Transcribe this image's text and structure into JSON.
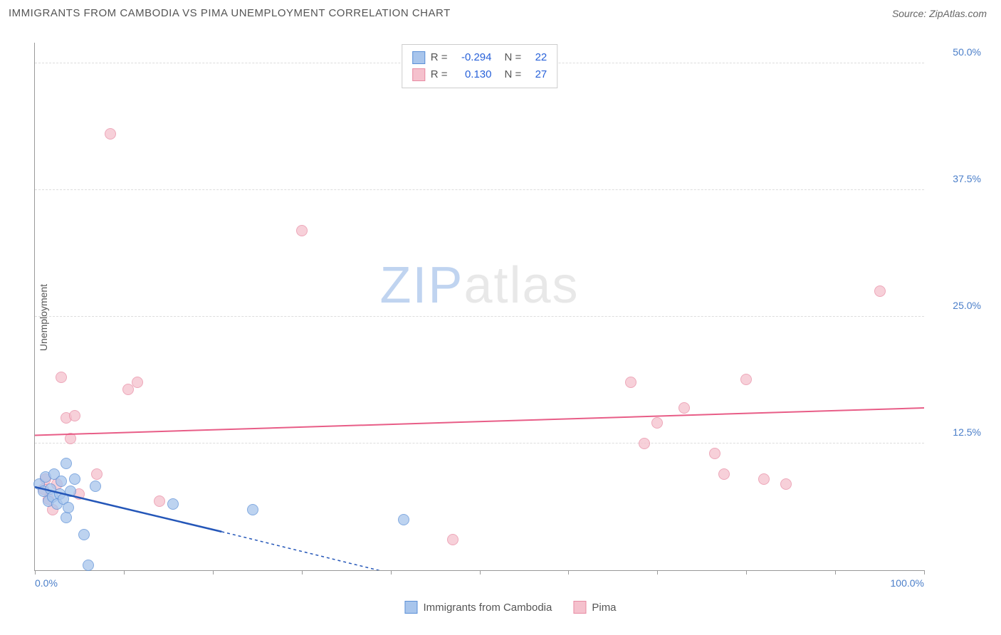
{
  "header": {
    "title": "IMMIGRANTS FROM CAMBODIA VS PIMA UNEMPLOYMENT CORRELATION CHART",
    "source_prefix": "Source: ",
    "source_name": "ZipAtlas.com"
  },
  "chart": {
    "type": "scatter",
    "y_axis_label": "Unemployment",
    "xlim": [
      0,
      100
    ],
    "ylim": [
      0,
      52
    ],
    "x_ticks": [
      0,
      10,
      20,
      30,
      40,
      50,
      60,
      70,
      80,
      90,
      100
    ],
    "x_tick_labels": {
      "0": "0.0%",
      "100": "100.0%"
    },
    "y_gridlines": [
      12.5,
      25.0,
      37.5,
      50.0
    ],
    "y_tick_labels": [
      "12.5%",
      "25.0%",
      "37.5%",
      "50.0%"
    ],
    "background_color": "#ffffff",
    "grid_color": "#dddddd",
    "axis_color": "#999999",
    "tick_label_color": "#4a7ec9",
    "watermark": {
      "zip": "ZIP",
      "atlas": "atlas",
      "zip_color": "#c0d4f0",
      "atlas_color": "#e8e8e8",
      "fontsize": 72
    }
  },
  "series": {
    "blue": {
      "label": "Immigrants from Cambodia",
      "R": "-0.294",
      "N": "22",
      "fill_color": "#a8c5ec",
      "border_color": "#5b8fd6",
      "line_color": "#2456b8",
      "points": [
        {
          "x": 0.5,
          "y": 8.5
        },
        {
          "x": 1.0,
          "y": 7.8
        },
        {
          "x": 1.2,
          "y": 9.2
        },
        {
          "x": 1.5,
          "y": 6.8
        },
        {
          "x": 1.8,
          "y": 8.0
        },
        {
          "x": 2.0,
          "y": 7.2
        },
        {
          "x": 2.2,
          "y": 9.5
        },
        {
          "x": 2.5,
          "y": 6.5
        },
        {
          "x": 2.8,
          "y": 7.5
        },
        {
          "x": 3.0,
          "y": 8.8
        },
        {
          "x": 3.2,
          "y": 7.0
        },
        {
          "x": 3.5,
          "y": 5.2
        },
        {
          "x": 3.5,
          "y": 10.5
        },
        {
          "x": 3.8,
          "y": 6.2
        },
        {
          "x": 4.0,
          "y": 7.8
        },
        {
          "x": 4.5,
          "y": 9.0
        },
        {
          "x": 5.5,
          "y": 3.5
        },
        {
          "x": 6.0,
          "y": 0.5
        },
        {
          "x": 6.8,
          "y": 8.3
        },
        {
          "x": 15.5,
          "y": 6.5
        },
        {
          "x": 24.5,
          "y": 6.0
        },
        {
          "x": 41.5,
          "y": 5.0
        }
      ],
      "trend": {
        "x1": 0,
        "y1": 8.2,
        "x2_solid": 21,
        "y2_solid": 3.8,
        "x2_dash": 40,
        "y2_dash": -0.3
      }
    },
    "pink": {
      "label": "Pima",
      "R": "0.130",
      "N": "27",
      "fill_color": "#f5c1cd",
      "border_color": "#e88ba3",
      "line_color": "#e85d87",
      "points": [
        {
          "x": 1.0,
          "y": 8.0
        },
        {
          "x": 1.2,
          "y": 9.0
        },
        {
          "x": 1.5,
          "y": 7.0
        },
        {
          "x": 2.0,
          "y": 6.0
        },
        {
          "x": 2.5,
          "y": 8.5
        },
        {
          "x": 3.0,
          "y": 19.0
        },
        {
          "x": 3.5,
          "y": 15.0
        },
        {
          "x": 4.0,
          "y": 13.0
        },
        {
          "x": 4.5,
          "y": 15.2
        },
        {
          "x": 5.0,
          "y": 7.5
        },
        {
          "x": 7.0,
          "y": 9.5
        },
        {
          "x": 8.5,
          "y": 43.0
        },
        {
          "x": 10.5,
          "y": 17.8
        },
        {
          "x": 11.5,
          "y": 18.5
        },
        {
          "x": 14.0,
          "y": 6.8
        },
        {
          "x": 30.0,
          "y": 33.5
        },
        {
          "x": 47.0,
          "y": 3.0
        },
        {
          "x": 67.0,
          "y": 18.5
        },
        {
          "x": 68.5,
          "y": 12.5
        },
        {
          "x": 70.0,
          "y": 14.5
        },
        {
          "x": 73.0,
          "y": 16.0
        },
        {
          "x": 76.5,
          "y": 11.5
        },
        {
          "x": 77.5,
          "y": 9.5
        },
        {
          "x": 80.0,
          "y": 18.8
        },
        {
          "x": 82.0,
          "y": 9.0
        },
        {
          "x": 84.5,
          "y": 8.5
        },
        {
          "x": 95.0,
          "y": 27.5
        }
      ],
      "trend": {
        "x1": 0,
        "y1": 13.3,
        "x2": 100,
        "y2": 16.0
      }
    }
  },
  "legend": {
    "R_label": "R =",
    "N_label": "N ="
  }
}
